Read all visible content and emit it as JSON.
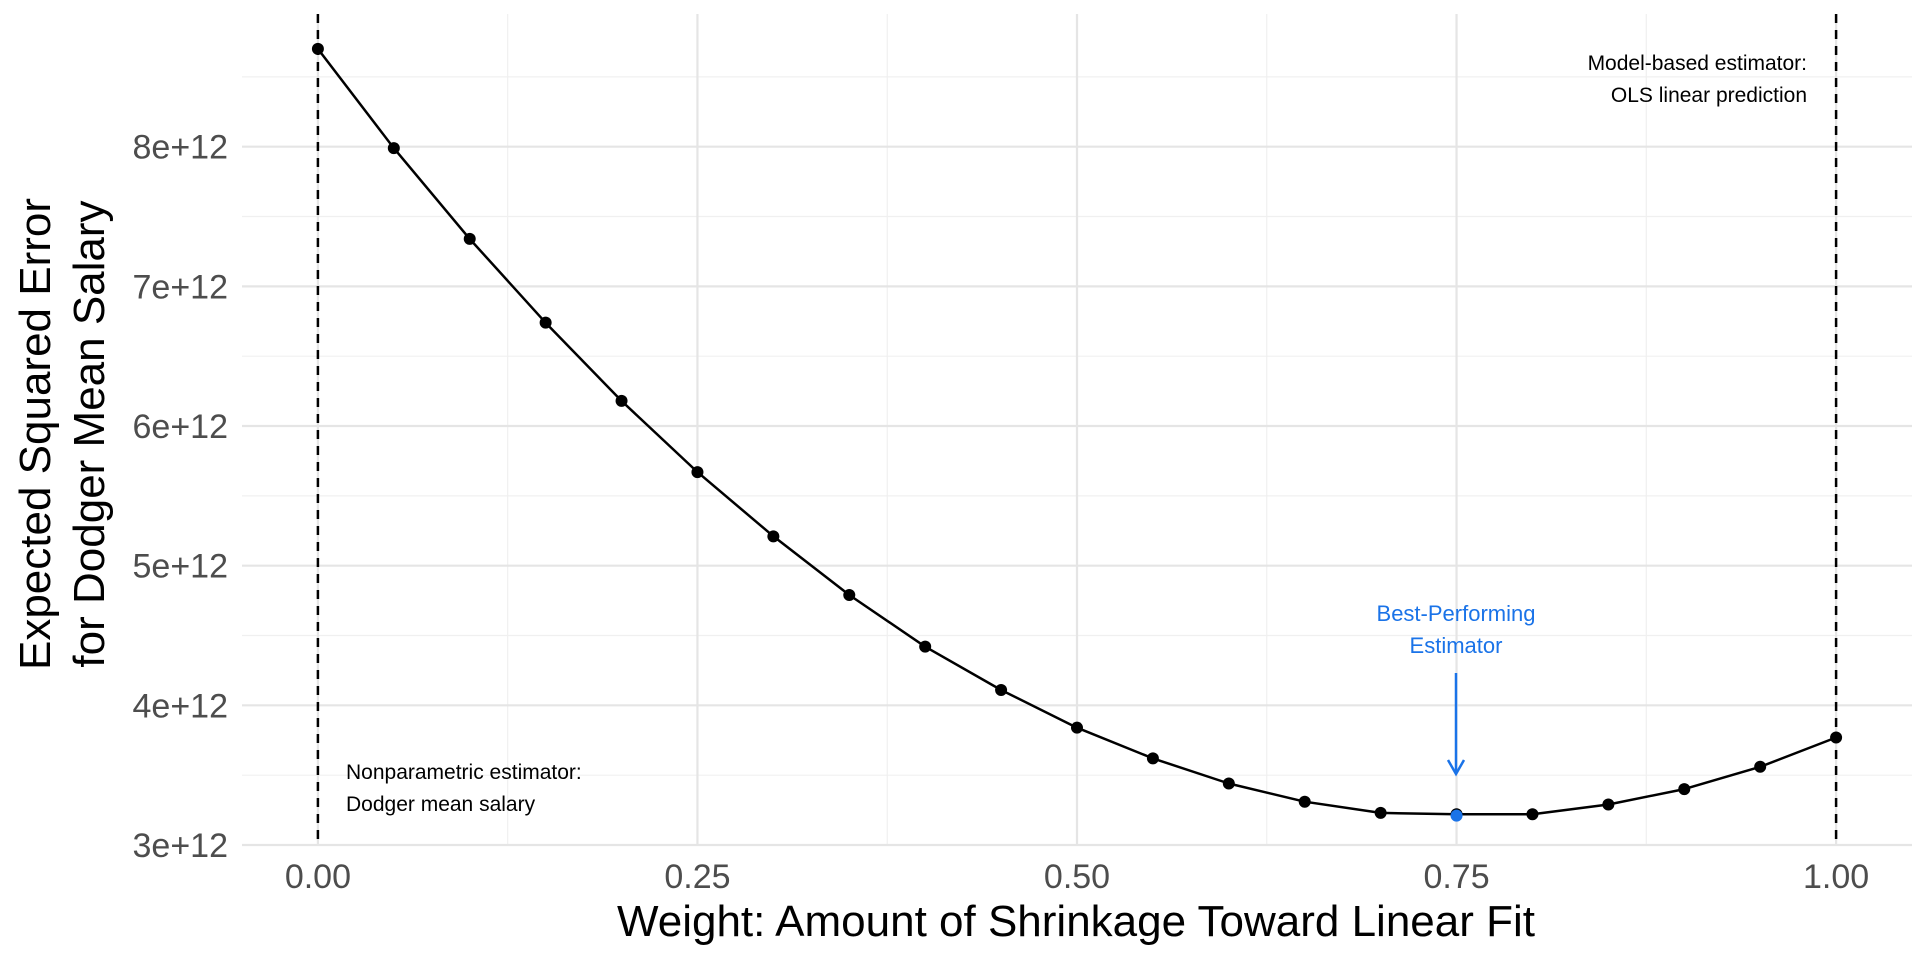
{
  "chart_data": {
    "type": "line",
    "title": "",
    "xlabel": "Weight: Amount of Shrinkage Toward Linear Fit",
    "ylabel": [
      "Expected Squared Error",
      "for Dodger Mean Salary"
    ],
    "xlim": [
      -0.05,
      1.05
    ],
    "ylim": [
      3000000000000,
      8950000000000
    ],
    "grid": true,
    "legend": "none",
    "x_ticks": [
      0.0,
      0.25,
      0.5,
      0.75,
      1.0
    ],
    "x_tick_labels": [
      "0.00",
      "0.25",
      "0.50",
      "0.75",
      "1.00"
    ],
    "y_ticks": [
      3000000000000,
      4000000000000,
      5000000000000,
      6000000000000,
      7000000000000,
      8000000000000
    ],
    "y_tick_labels": [
      "3e+12",
      "4e+12",
      "5e+12",
      "6e+12",
      "7e+12",
      "8e+12"
    ],
    "series": [
      {
        "x": [
          0.0,
          0.05,
          0.1,
          0.15,
          0.2,
          0.25,
          0.3,
          0.35,
          0.4,
          0.45,
          0.5,
          0.55,
          0.6,
          0.65,
          0.7,
          0.75,
          0.8,
          0.85,
          0.9,
          0.95,
          1.0
        ],
        "values": [
          8700000000000,
          7990000000000,
          7340000000000,
          6740000000000,
          6180000000000,
          5670000000000,
          5210000000000,
          4790000000000,
          4420000000000,
          4110000000000,
          3840000000000,
          3620000000000,
          3440000000000,
          3310000000000,
          3230000000000,
          3220000000000,
          3220000000000,
          3290000000000,
          3400000000000,
          3560000000000,
          3770000000000
        ]
      }
    ],
    "vlines": [
      0.0,
      1.0
    ],
    "highlight": {
      "x": 0.75,
      "y": 3210000000000,
      "color": "#1a73e8"
    },
    "colors": {
      "line": "#000000",
      "point": "#000000",
      "highlight": "#1a73e8",
      "grid_major": "#e5e5e5",
      "grid_minor": "#f0f0f0"
    },
    "annotations": {
      "model_based": [
        "Model-based estimator:",
        "OLS linear prediction"
      ],
      "nonparametric": [
        "Nonparametric estimator:",
        "Dodger mean salary"
      ],
      "best": [
        "Best-Performing",
        "Estimator"
      ]
    }
  }
}
